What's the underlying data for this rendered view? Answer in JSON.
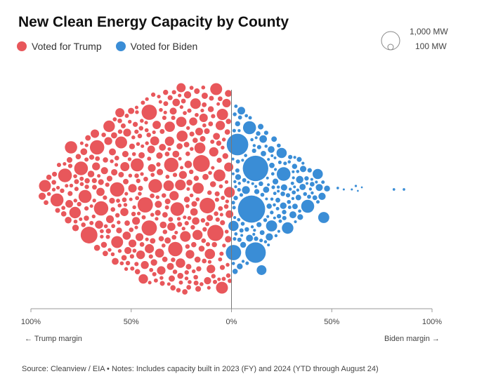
{
  "title": "New Clean Energy Capacity by County",
  "legend": {
    "trump": {
      "label": "Voted for Trump",
      "color": "#E8575B"
    },
    "biden": {
      "label": "Voted for Biden",
      "color": "#3A8DD6"
    }
  },
  "size_legend": {
    "large": "1,000 MW",
    "small": "100 MW"
  },
  "margin_labels": {
    "left": "← Trump margin",
    "right": "Biden margin →"
  },
  "source": "Source: Cleanview / EIA • Notes: Includes capacity built in 2023 (FY) and 2024 (YTD through August 24)",
  "chart_data": {
    "type": "scatter",
    "subtype": "beeswarm",
    "xlabel_left": "← Trump margin",
    "xlabel_right": "Biden margin →",
    "x_ticks": [
      {
        "value": -100,
        "label": "100%"
      },
      {
        "value": -50,
        "label": "50%"
      },
      {
        "value": 0,
        "label": "0%"
      },
      {
        "value": 50,
        "label": "50%"
      },
      {
        "value": 100,
        "label": "100%"
      }
    ],
    "xlim": [
      -100,
      100
    ],
    "size_scale": [
      {
        "mw": 1000,
        "label": "1,000 MW"
      },
      {
        "mw": 100,
        "label": "100 MW"
      }
    ],
    "series": [
      {
        "name": "Voted for Trump",
        "counties": [
          {
            "margin": -41,
            "offset": -110,
            "mw": 250
          },
          {
            "margin": -61,
            "offset": -90,
            "mw": 140
          },
          {
            "margin": -80,
            "offset": -60,
            "mw": 160
          },
          {
            "margin": -67,
            "offset": -60,
            "mw": 220
          },
          {
            "margin": -55,
            "offset": -67,
            "mw": 150
          },
          {
            "margin": -93,
            "offset": -5,
            "mw": 150
          },
          {
            "margin": -83,
            "offset": -20,
            "mw": 200
          },
          {
            "margin": -75,
            "offset": -30,
            "mw": 200
          },
          {
            "margin": -47,
            "offset": -35,
            "mw": 180
          },
          {
            "margin": -30,
            "offset": -35,
            "mw": 220
          },
          {
            "margin": -15,
            "offset": -37,
            "mw": 300
          },
          {
            "margin": -6,
            "offset": -20,
            "mw": 150
          },
          {
            "margin": -38,
            "offset": -5,
            "mw": 200
          },
          {
            "margin": -57,
            "offset": 0,
            "mw": 220
          },
          {
            "margin": -73,
            "offset": 10,
            "mw": 180
          },
          {
            "margin": -87,
            "offset": 15,
            "mw": 180
          },
          {
            "margin": -78,
            "offset": 33,
            "mw": 140
          },
          {
            "margin": -65,
            "offset": 27,
            "mw": 220
          },
          {
            "margin": -43,
            "offset": 22,
            "mw": 250
          },
          {
            "margin": -12,
            "offset": 23,
            "mw": 260
          },
          {
            "margin": -27,
            "offset": 28,
            "mw": 200
          },
          {
            "margin": -71,
            "offset": 65,
            "mw": 300
          },
          {
            "margin": -41,
            "offset": 55,
            "mw": 250
          },
          {
            "margin": -8,
            "offset": 62,
            "mw": 280
          },
          {
            "margin": -28,
            "offset": 85,
            "mw": 220
          },
          {
            "margin": -57,
            "offset": 75,
            "mw": 150
          },
          {
            "margin": -23,
            "offset": 67,
            "mw": 120
          },
          {
            "margin": -1,
            "offset": 4,
            "mw": 120
          }
        ]
      },
      {
        "name": "Voted for Biden",
        "counties": [
          {
            "margin": 3,
            "offset": -64,
            "mw": 500
          },
          {
            "margin": 12,
            "offset": -30,
            "mw": 700
          },
          {
            "margin": 10,
            "offset": 28,
            "mw": 800
          },
          {
            "margin": 12,
            "offset": 90,
            "mw": 450
          },
          {
            "margin": 1,
            "offset": 90,
            "mw": 250
          },
          {
            "margin": 26,
            "offset": -22,
            "mw": 200
          },
          {
            "margin": 38,
            "offset": 24,
            "mw": 180
          },
          {
            "margin": 28,
            "offset": 55,
            "mw": 140
          },
          {
            "margin": 9,
            "offset": -88,
            "mw": 180
          },
          {
            "margin": 46,
            "offset": 40,
            "mw": 130
          },
          {
            "margin": 43,
            "offset": -22,
            "mw": 110
          },
          {
            "margin": 25,
            "offset": -52,
            "mw": 110
          },
          {
            "margin": 20,
            "offset": 52,
            "mw": 130
          },
          {
            "margin": 1,
            "offset": 52,
            "mw": 110
          },
          {
            "margin": 15,
            "offset": 115,
            "mw": 100
          },
          {
            "margin": 81,
            "offset": 0,
            "mw": 6
          },
          {
            "margin": 86,
            "offset": 0,
            "mw": 6
          },
          {
            "margin": 53,
            "offset": -2,
            "mw": 6
          },
          {
            "margin": 56,
            "offset": 0,
            "mw": 4
          },
          {
            "margin": 60,
            "offset": 0,
            "mw": 4
          },
          {
            "margin": 62,
            "offset": -5,
            "mw": 5
          },
          {
            "margin": 63,
            "offset": 2,
            "mw": 3
          },
          {
            "margin": 65,
            "offset": -3,
            "mw": 3
          }
        ]
      }
    ]
  }
}
